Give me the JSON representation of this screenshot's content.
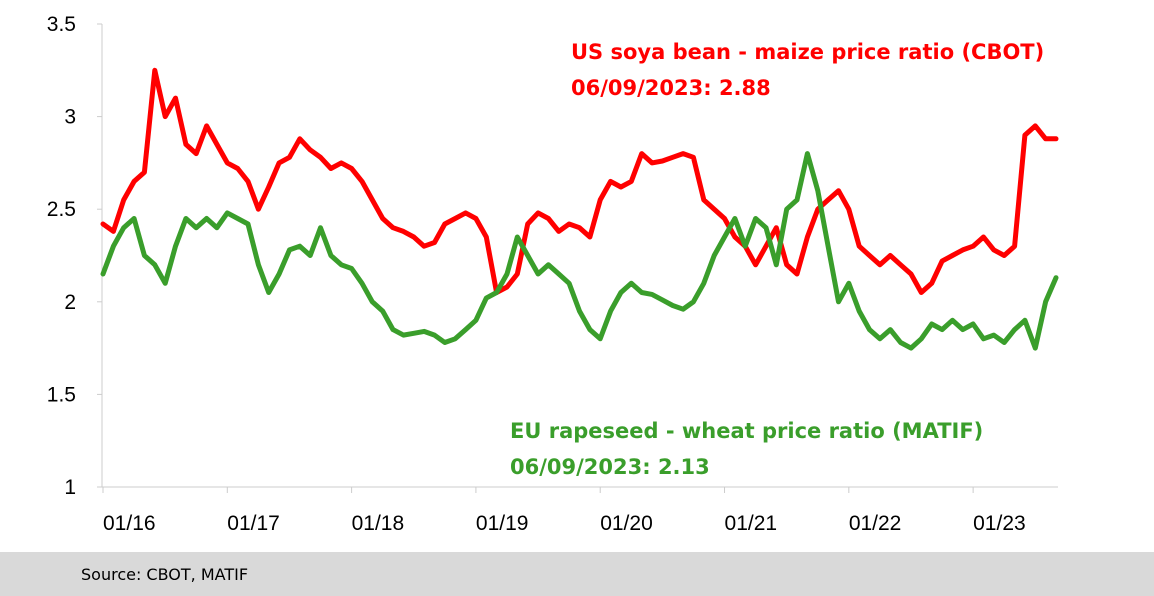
{
  "chart_data": {
    "type": "line",
    "title": "",
    "xlabel": "",
    "ylabel": "",
    "ylim": [
      1,
      3.5
    ],
    "yticks": [
      "1",
      "1.5",
      "2",
      "2.5",
      "3",
      "3.5"
    ],
    "xticks": [
      "01/16",
      "01/17",
      "01/18",
      "01/19",
      "01/20",
      "01/21",
      "01/22",
      "01/23"
    ],
    "xlim": [
      "2016-01",
      "2023-09"
    ],
    "grid": false,
    "legend": "none",
    "annotations": [
      {
        "series": "us",
        "line1": "US soya bean - maize price ratio (CBOT)",
        "line2": "06/09/2023:  2.88"
      },
      {
        "series": "eu",
        "line1": "EU rapeseed - wheat price ratio (MATIF)",
        "line2": "06/09/2023: 2.13"
      }
    ],
    "series": [
      {
        "key": "us",
        "color": "#ff0000",
        "x": [
          "2016-01",
          "2016-02",
          "2016-03",
          "2016-04",
          "2016-05",
          "2016-06",
          "2016-07",
          "2016-08",
          "2016-09",
          "2016-10",
          "2016-11",
          "2016-12",
          "2017-01",
          "2017-02",
          "2017-03",
          "2017-04",
          "2017-05",
          "2017-06",
          "2017-07",
          "2017-08",
          "2017-09",
          "2017-10",
          "2017-11",
          "2017-12",
          "2018-01",
          "2018-02",
          "2018-03",
          "2018-04",
          "2018-05",
          "2018-06",
          "2018-07",
          "2018-08",
          "2018-09",
          "2018-10",
          "2018-11",
          "2018-12",
          "2019-01",
          "2019-02",
          "2019-03",
          "2019-04",
          "2019-05",
          "2019-06",
          "2019-07",
          "2019-08",
          "2019-09",
          "2019-10",
          "2019-11",
          "2019-12",
          "2020-01",
          "2020-02",
          "2020-03",
          "2020-04",
          "2020-05",
          "2020-06",
          "2020-07",
          "2020-08",
          "2020-09",
          "2020-10",
          "2020-11",
          "2020-12",
          "2021-01",
          "2021-02",
          "2021-03",
          "2021-04",
          "2021-05",
          "2021-06",
          "2021-07",
          "2021-08",
          "2021-09",
          "2021-10",
          "2021-11",
          "2021-12",
          "2022-01",
          "2022-02",
          "2022-03",
          "2022-04",
          "2022-05",
          "2022-06",
          "2022-07",
          "2022-08",
          "2022-09",
          "2022-10",
          "2022-11",
          "2022-12",
          "2023-01",
          "2023-02",
          "2023-03",
          "2023-04",
          "2023-05",
          "2023-06",
          "2023-07",
          "2023-08",
          "2023-09"
        ],
        "values": [
          2.42,
          2.38,
          2.55,
          2.65,
          2.7,
          3.25,
          3.0,
          3.1,
          2.85,
          2.8,
          2.95,
          2.85,
          2.75,
          2.72,
          2.65,
          2.5,
          2.62,
          2.75,
          2.78,
          2.88,
          2.82,
          2.78,
          2.72,
          2.75,
          2.72,
          2.65,
          2.55,
          2.45,
          2.4,
          2.38,
          2.35,
          2.3,
          2.32,
          2.42,
          2.45,
          2.48,
          2.45,
          2.35,
          2.05,
          2.08,
          2.15,
          2.42,
          2.48,
          2.45,
          2.38,
          2.42,
          2.4,
          2.35,
          2.55,
          2.65,
          2.62,
          2.65,
          2.8,
          2.75,
          2.76,
          2.78,
          2.8,
          2.78,
          2.55,
          2.5,
          2.45,
          2.35,
          2.3,
          2.2,
          2.3,
          2.4,
          2.2,
          2.15,
          2.35,
          2.5,
          2.55,
          2.6,
          2.5,
          2.3,
          2.25,
          2.2,
          2.25,
          2.2,
          2.15,
          2.05,
          2.1,
          2.22,
          2.25,
          2.28,
          2.3,
          2.35,
          2.28,
          2.25,
          2.3,
          2.9,
          2.95,
          2.88,
          2.88
        ]
      },
      {
        "key": "eu",
        "color": "#3a9e2b",
        "x": [
          "2016-01",
          "2016-02",
          "2016-03",
          "2016-04",
          "2016-05",
          "2016-06",
          "2016-07",
          "2016-08",
          "2016-09",
          "2016-10",
          "2016-11",
          "2016-12",
          "2017-01",
          "2017-02",
          "2017-03",
          "2017-04",
          "2017-05",
          "2017-06",
          "2017-07",
          "2017-08",
          "2017-09",
          "2017-10",
          "2017-11",
          "2017-12",
          "2018-01",
          "2018-02",
          "2018-03",
          "2018-04",
          "2018-05",
          "2018-06",
          "2018-07",
          "2018-08",
          "2018-09",
          "2018-10",
          "2018-11",
          "2018-12",
          "2019-01",
          "2019-02",
          "2019-03",
          "2019-04",
          "2019-05",
          "2019-06",
          "2019-07",
          "2019-08",
          "2019-09",
          "2019-10",
          "2019-11",
          "2019-12",
          "2020-01",
          "2020-02",
          "2020-03",
          "2020-04",
          "2020-05",
          "2020-06",
          "2020-07",
          "2020-08",
          "2020-09",
          "2020-10",
          "2020-11",
          "2020-12",
          "2021-01",
          "2021-02",
          "2021-03",
          "2021-04",
          "2021-05",
          "2021-06",
          "2021-07",
          "2021-08",
          "2021-09",
          "2021-10",
          "2021-11",
          "2021-12",
          "2022-01",
          "2022-02",
          "2022-03",
          "2022-04",
          "2022-05",
          "2022-06",
          "2022-07",
          "2022-08",
          "2022-09",
          "2022-10",
          "2022-11",
          "2022-12",
          "2023-01",
          "2023-02",
          "2023-03",
          "2023-04",
          "2023-05",
          "2023-06",
          "2023-07",
          "2023-08",
          "2023-09"
        ],
        "values": [
          2.15,
          2.3,
          2.4,
          2.45,
          2.25,
          2.2,
          2.1,
          2.3,
          2.45,
          2.4,
          2.45,
          2.4,
          2.48,
          2.45,
          2.42,
          2.2,
          2.05,
          2.15,
          2.28,
          2.3,
          2.25,
          2.4,
          2.25,
          2.2,
          2.18,
          2.1,
          2.0,
          1.95,
          1.85,
          1.82,
          1.83,
          1.84,
          1.82,
          1.78,
          1.8,
          1.85,
          1.9,
          2.02,
          2.05,
          2.15,
          2.35,
          2.25,
          2.15,
          2.2,
          2.15,
          2.1,
          1.95,
          1.85,
          1.8,
          1.95,
          2.05,
          2.1,
          2.05,
          2.04,
          2.01,
          1.98,
          1.96,
          2.0,
          2.1,
          2.25,
          2.35,
          2.45,
          2.3,
          2.45,
          2.4,
          2.2,
          2.5,
          2.55,
          2.8,
          2.6,
          2.3,
          2.0,
          2.1,
          1.95,
          1.85,
          1.8,
          1.85,
          1.78,
          1.75,
          1.8,
          1.88,
          1.85,
          1.9,
          1.85,
          1.88,
          1.8,
          1.82,
          1.78,
          1.85,
          1.9,
          1.75,
          2.0,
          2.13
        ]
      }
    ]
  },
  "footer": {
    "source": "Source: CBOT, MATIF"
  }
}
